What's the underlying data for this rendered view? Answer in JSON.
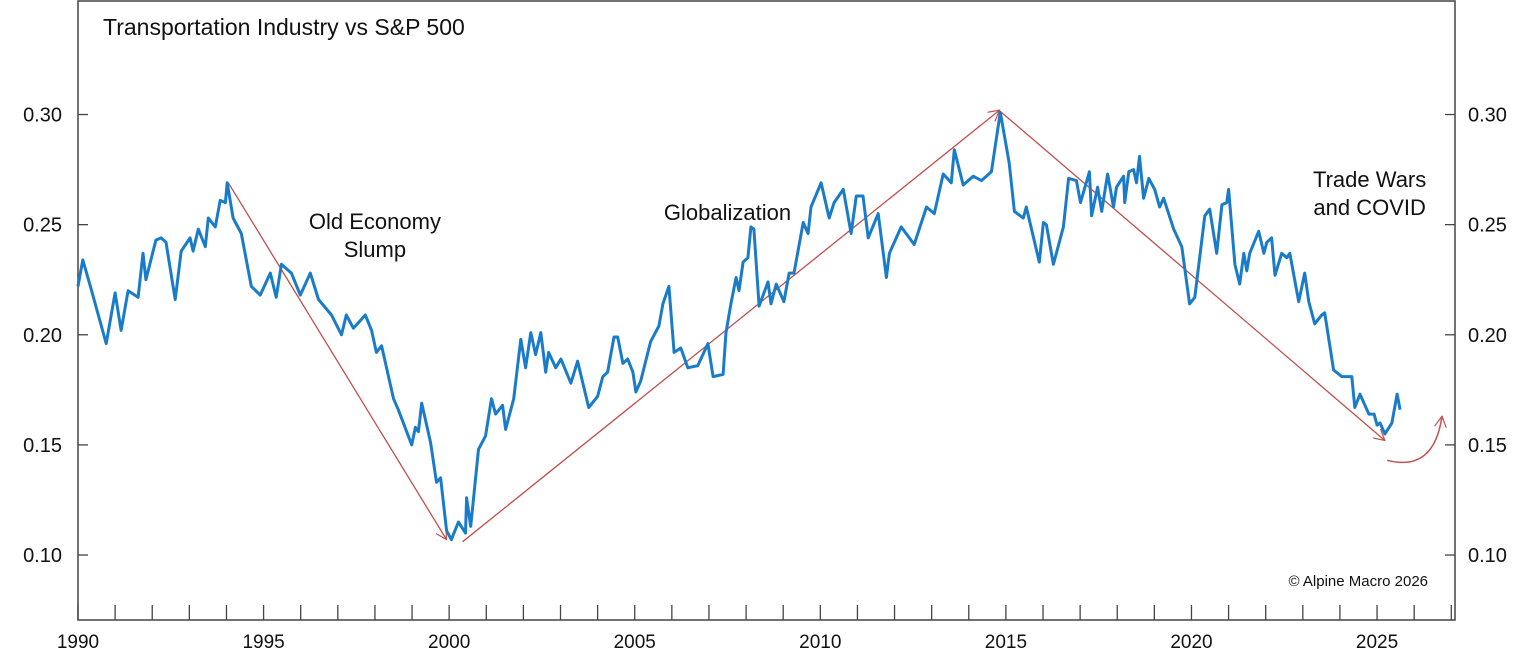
{
  "chart_data": {
    "type": "line",
    "title": "Transportation Industry vs S&P 500",
    "xlabel": "",
    "ylabel": "",
    "xlim": [
      1990,
      2027.1
    ],
    "ylim": [
      0.0705,
      0.352
    ],
    "x_ticks": [
      "1990",
      "1995",
      "2000",
      "2005",
      "2010",
      "2015",
      "2020",
      "2025"
    ],
    "y_ticks": [
      "0.10",
      "0.15",
      "0.20",
      "0.25",
      "0.30"
    ],
    "grid": false,
    "line_color": "#1a7cc8",
    "annotation_color": "#c0504d",
    "series": [
      {
        "points": [
          [
            1990.0,
            0.222
          ],
          [
            1990.13,
            0.234
          ],
          [
            1990.35,
            0.221
          ],
          [
            1990.76,
            0.196
          ],
          [
            1991.0,
            0.219
          ],
          [
            1991.16,
            0.202
          ],
          [
            1991.35,
            0.22
          ],
          [
            1991.62,
            0.217
          ],
          [
            1991.75,
            0.237
          ],
          [
            1991.83,
            0.225
          ],
          [
            1992.1,
            0.243
          ],
          [
            1992.24,
            0.244
          ],
          [
            1992.37,
            0.242
          ],
          [
            1992.62,
            0.216
          ],
          [
            1992.78,
            0.238
          ],
          [
            1993.02,
            0.244
          ],
          [
            1993.1,
            0.238
          ],
          [
            1993.24,
            0.248
          ],
          [
            1993.43,
            0.24
          ],
          [
            1993.51,
            0.253
          ],
          [
            1993.7,
            0.249
          ],
          [
            1993.83,
            0.261
          ],
          [
            1993.97,
            0.26
          ],
          [
            1994.02,
            0.269
          ],
          [
            1994.18,
            0.253
          ],
          [
            1994.4,
            0.246
          ],
          [
            1994.67,
            0.222
          ],
          [
            1994.91,
            0.218
          ],
          [
            1995.18,
            0.228
          ],
          [
            1995.34,
            0.217
          ],
          [
            1995.48,
            0.232
          ],
          [
            1995.75,
            0.228
          ],
          [
            1995.99,
            0.218
          ],
          [
            1996.26,
            0.228
          ],
          [
            1996.48,
            0.216
          ],
          [
            1996.83,
            0.209
          ],
          [
            1997.1,
            0.2
          ],
          [
            1997.23,
            0.209
          ],
          [
            1997.42,
            0.203
          ],
          [
            1997.74,
            0.209
          ],
          [
            1997.91,
            0.202
          ],
          [
            1998.04,
            0.192
          ],
          [
            1998.18,
            0.195
          ],
          [
            1998.5,
            0.171
          ],
          [
            1998.63,
            0.166
          ],
          [
            1998.99,
            0.15
          ],
          [
            1999.09,
            0.158
          ],
          [
            1999.17,
            0.156
          ],
          [
            1999.26,
            0.169
          ],
          [
            1999.5,
            0.151
          ],
          [
            1999.66,
            0.133
          ],
          [
            1999.77,
            0.135
          ],
          [
            1999.93,
            0.111
          ],
          [
            2000.06,
            0.107
          ],
          [
            2000.25,
            0.115
          ],
          [
            2000.44,
            0.11
          ],
          [
            2000.47,
            0.126
          ],
          [
            2000.58,
            0.113
          ],
          [
            2000.79,
            0.148
          ],
          [
            2000.98,
            0.154
          ],
          [
            2001.14,
            0.171
          ],
          [
            2001.25,
            0.164
          ],
          [
            2001.44,
            0.168
          ],
          [
            2001.52,
            0.157
          ],
          [
            2001.74,
            0.171
          ],
          [
            2001.93,
            0.198
          ],
          [
            2002.06,
            0.185
          ],
          [
            2002.2,
            0.201
          ],
          [
            2002.33,
            0.191
          ],
          [
            2002.47,
            0.201
          ],
          [
            2002.6,
            0.183
          ],
          [
            2002.68,
            0.192
          ],
          [
            2002.87,
            0.185
          ],
          [
            2003.01,
            0.189
          ],
          [
            2003.28,
            0.178
          ],
          [
            2003.46,
            0.188
          ],
          [
            2003.76,
            0.167
          ],
          [
            2004.0,
            0.172
          ],
          [
            2004.14,
            0.181
          ],
          [
            2004.27,
            0.183
          ],
          [
            2004.44,
            0.199
          ],
          [
            2004.54,
            0.199
          ],
          [
            2004.68,
            0.187
          ],
          [
            2004.81,
            0.189
          ],
          [
            2004.95,
            0.183
          ],
          [
            2005.03,
            0.174
          ],
          [
            2005.16,
            0.179
          ],
          [
            2005.43,
            0.197
          ],
          [
            2005.65,
            0.204
          ],
          [
            2005.76,
            0.214
          ],
          [
            2005.92,
            0.222
          ],
          [
            2006.06,
            0.192
          ],
          [
            2006.24,
            0.194
          ],
          [
            2006.43,
            0.185
          ],
          [
            2006.7,
            0.186
          ],
          [
            2006.97,
            0.196
          ],
          [
            2007.11,
            0.181
          ],
          [
            2007.38,
            0.182
          ],
          [
            2007.46,
            0.201
          ],
          [
            2007.59,
            0.214
          ],
          [
            2007.73,
            0.226
          ],
          [
            2007.81,
            0.22
          ],
          [
            2007.92,
            0.233
          ],
          [
            2008.05,
            0.235
          ],
          [
            2008.13,
            0.249
          ],
          [
            2008.21,
            0.248
          ],
          [
            2008.35,
            0.213
          ],
          [
            2008.59,
            0.224
          ],
          [
            2008.67,
            0.214
          ],
          [
            2008.81,
            0.223
          ],
          [
            2009.02,
            0.215
          ],
          [
            2009.16,
            0.228
          ],
          [
            2009.29,
            0.228
          ],
          [
            2009.54,
            0.251
          ],
          [
            2009.67,
            0.246
          ],
          [
            2009.75,
            0.258
          ],
          [
            2010.02,
            0.269
          ],
          [
            2010.24,
            0.253
          ],
          [
            2010.37,
            0.26
          ],
          [
            2010.62,
            0.266
          ],
          [
            2010.83,
            0.246
          ],
          [
            2010.97,
            0.263
          ],
          [
            2011.15,
            0.263
          ],
          [
            2011.29,
            0.244
          ],
          [
            2011.56,
            0.255
          ],
          [
            2011.78,
            0.226
          ],
          [
            2011.86,
            0.237
          ],
          [
            2012.18,
            0.249
          ],
          [
            2012.53,
            0.241
          ],
          [
            2012.86,
            0.258
          ],
          [
            2013.07,
            0.255
          ],
          [
            2013.31,
            0.273
          ],
          [
            2013.53,
            0.269
          ],
          [
            2013.61,
            0.284
          ],
          [
            2013.85,
            0.268
          ],
          [
            2014.12,
            0.272
          ],
          [
            2014.34,
            0.27
          ],
          [
            2014.61,
            0.274
          ],
          [
            2014.85,
            0.301
          ],
          [
            2015.09,
            0.278
          ],
          [
            2015.23,
            0.256
          ],
          [
            2015.47,
            0.253
          ],
          [
            2015.55,
            0.258
          ],
          [
            2015.9,
            0.233
          ],
          [
            2016.01,
            0.251
          ],
          [
            2016.09,
            0.25
          ],
          [
            2016.28,
            0.232
          ],
          [
            2016.55,
            0.249
          ],
          [
            2016.69,
            0.271
          ],
          [
            2016.9,
            0.27
          ],
          [
            2017.01,
            0.26
          ],
          [
            2017.25,
            0.274
          ],
          [
            2017.31,
            0.254
          ],
          [
            2017.47,
            0.267
          ],
          [
            2017.58,
            0.256
          ],
          [
            2017.74,
            0.273
          ],
          [
            2017.9,
            0.258
          ],
          [
            2017.98,
            0.267
          ],
          [
            2018.17,
            0.272
          ],
          [
            2018.2,
            0.26
          ],
          [
            2018.31,
            0.274
          ],
          [
            2018.44,
            0.275
          ],
          [
            2018.52,
            0.269
          ],
          [
            2018.6,
            0.281
          ],
          [
            2018.71,
            0.262
          ],
          [
            2018.85,
            0.271
          ],
          [
            2019.01,
            0.266
          ],
          [
            2019.14,
            0.258
          ],
          [
            2019.25,
            0.262
          ],
          [
            2019.52,
            0.248
          ],
          [
            2019.74,
            0.24
          ],
          [
            2019.95,
            0.214
          ],
          [
            2020.09,
            0.217
          ],
          [
            2020.36,
            0.254
          ],
          [
            2020.49,
            0.257
          ],
          [
            2020.68,
            0.237
          ],
          [
            2020.82,
            0.259
          ],
          [
            2020.95,
            0.26
          ],
          [
            2021.0,
            0.266
          ],
          [
            2021.17,
            0.232
          ],
          [
            2021.3,
            0.223
          ],
          [
            2021.41,
            0.237
          ],
          [
            2021.49,
            0.229
          ],
          [
            2021.57,
            0.237
          ],
          [
            2021.81,
            0.247
          ],
          [
            2021.95,
            0.237
          ],
          [
            2022.03,
            0.242
          ],
          [
            2022.16,
            0.244
          ],
          [
            2022.25,
            0.227
          ],
          [
            2022.43,
            0.237
          ],
          [
            2022.57,
            0.235
          ],
          [
            2022.65,
            0.237
          ],
          [
            2022.89,
            0.215
          ],
          [
            2023.05,
            0.228
          ],
          [
            2023.16,
            0.215
          ],
          [
            2023.32,
            0.205
          ],
          [
            2023.51,
            0.209
          ],
          [
            2023.59,
            0.21
          ],
          [
            2023.83,
            0.184
          ],
          [
            2024.05,
            0.181
          ],
          [
            2024.32,
            0.181
          ],
          [
            2024.4,
            0.167
          ],
          [
            2024.54,
            0.173
          ],
          [
            2024.78,
            0.164
          ],
          [
            2024.92,
            0.164
          ],
          [
            2025.0,
            0.159
          ],
          [
            2025.08,
            0.16
          ],
          [
            2025.21,
            0.155
          ],
          [
            2025.4,
            0.16
          ],
          [
            2025.54,
            0.173
          ],
          [
            2025.62,
            0.166
          ]
        ]
      }
    ],
    "arrows": [
      {
        "from": [
          1994.05,
          0.269
        ],
        "to": [
          1999.93,
          0.107
        ]
      },
      {
        "from": [
          2000.36,
          0.106
        ],
        "to": [
          2014.83,
          0.302
        ]
      },
      {
        "from": [
          2014.88,
          0.301
        ],
        "to": [
          2025.21,
          0.152
        ]
      }
    ],
    "curved_arrow": {
      "from": [
        2025.27,
        0.143
      ],
      "to": [
        2026.75,
        0.163
      ]
    },
    "annotations": [
      {
        "lines": [
          "Old Economy",
          "Slump"
        ],
        "at": [
          1998.0,
          0.248
        ]
      },
      {
        "lines": [
          "Globalization"
        ],
        "at": [
          2007.5,
          0.252
        ]
      },
      {
        "lines": [
          "Trade Wars",
          "and COVID"
        ],
        "at": [
          2024.8,
          0.267
        ]
      }
    ],
    "copyright": "© Alpine Macro 2026"
  }
}
